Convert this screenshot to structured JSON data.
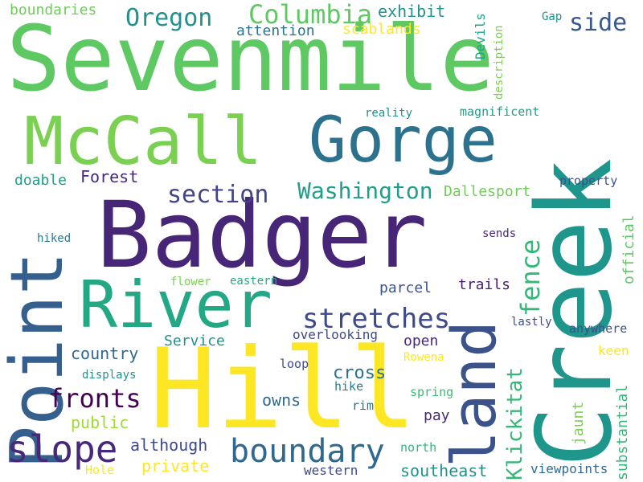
{
  "words": [
    {
      "text": "Sevenmile",
      "color": "#5ec962"
    },
    {
      "text": "Badger",
      "color": "#482677"
    },
    {
      "text": "Hill",
      "color": "#fde725"
    },
    {
      "text": "Creek",
      "color": "#1f968b"
    },
    {
      "text": "McCall",
      "color": "#7ad151"
    },
    {
      "text": "Gorge",
      "color": "#2c728e"
    },
    {
      "text": "River",
      "color": "#22a884"
    },
    {
      "text": "Point",
      "color": "#355f8d"
    },
    {
      "text": "land",
      "color": "#3b528b"
    },
    {
      "text": "Columbia",
      "color": "#5ec962"
    },
    {
      "text": "Oregon",
      "color": "#21918c"
    },
    {
      "text": "slope",
      "color": "#482878"
    },
    {
      "text": "boundary",
      "color": "#31688e"
    },
    {
      "text": "stretches",
      "color": "#3e4a89"
    },
    {
      "text": "section",
      "color": "#414487"
    },
    {
      "text": "Washington",
      "color": "#1f9e89"
    },
    {
      "text": "fronts",
      "color": "#440154"
    },
    {
      "text": "fence",
      "color": "#35b779"
    },
    {
      "text": "side",
      "color": "#38598c"
    },
    {
      "text": "Klickitat",
      "color": "#35b779"
    },
    {
      "text": "exhibit",
      "color": "#21918c"
    },
    {
      "text": "scablands",
      "color": "#fde725"
    },
    {
      "text": "attention",
      "color": "#2c728e"
    },
    {
      "text": "boundaries",
      "color": "#6ece58"
    },
    {
      "text": "Devils",
      "color": "#1fa188"
    },
    {
      "text": "Gap",
      "color": "#21918c"
    },
    {
      "text": "description",
      "color": "#7ad151"
    },
    {
      "text": "reality",
      "color": "#21918c"
    },
    {
      "text": "magnificent",
      "color": "#1f9e89"
    },
    {
      "text": "Forest",
      "color": "#482878"
    },
    {
      "text": "doable",
      "color": "#1f9e89"
    },
    {
      "text": "Dallesport",
      "color": "#6ece58"
    },
    {
      "text": "property",
      "color": "#3b528b"
    },
    {
      "text": "official",
      "color": "#5ec962"
    },
    {
      "text": "hiked",
      "color": "#2a788e"
    },
    {
      "text": "flower",
      "color": "#7ad151"
    },
    {
      "text": "eastern",
      "color": "#22a884"
    },
    {
      "text": "open",
      "color": "#482878"
    },
    {
      "text": "parcel",
      "color": "#3b528b"
    },
    {
      "text": "trails",
      "color": "#481f70"
    },
    {
      "text": "sends",
      "color": "#482878"
    },
    {
      "text": "lastly",
      "color": "#3e4a89"
    },
    {
      "text": "anywhere",
      "color": "#3b528b"
    },
    {
      "text": "keen",
      "color": "#fde725"
    },
    {
      "text": "country",
      "color": "#31688e"
    },
    {
      "text": "Service",
      "color": "#21918c"
    },
    {
      "text": "overlooking",
      "color": "#3e4a89"
    },
    {
      "text": "displays",
      "color": "#21918c"
    },
    {
      "text": "cross",
      "color": "#2c728e"
    },
    {
      "text": "loop",
      "color": "#3e4a89"
    },
    {
      "text": "Rowena",
      "color": "#fde725"
    },
    {
      "text": "public",
      "color": "#a0da39"
    },
    {
      "text": "owns",
      "color": "#31688e"
    },
    {
      "text": "hike",
      "color": "#2a788e"
    },
    {
      "text": "rim",
      "color": "#2c728e"
    },
    {
      "text": "spring",
      "color": "#3cbb75"
    },
    {
      "text": "pay",
      "color": "#482878"
    },
    {
      "text": "jaunt",
      "color": "#7ad151"
    },
    {
      "text": "substantial",
      "color": "#35b779"
    },
    {
      "text": "although",
      "color": "#3e4a89"
    },
    {
      "text": "north",
      "color": "#35b779"
    },
    {
      "text": "private",
      "color": "#fde725"
    },
    {
      "text": "Hole",
      "color": "#fde725"
    },
    {
      "text": "western",
      "color": "#3e4a89"
    },
    {
      "text": "southeast",
      "color": "#21918c"
    },
    {
      "text": "viewpoints",
      "color": "#31688e"
    }
  ]
}
